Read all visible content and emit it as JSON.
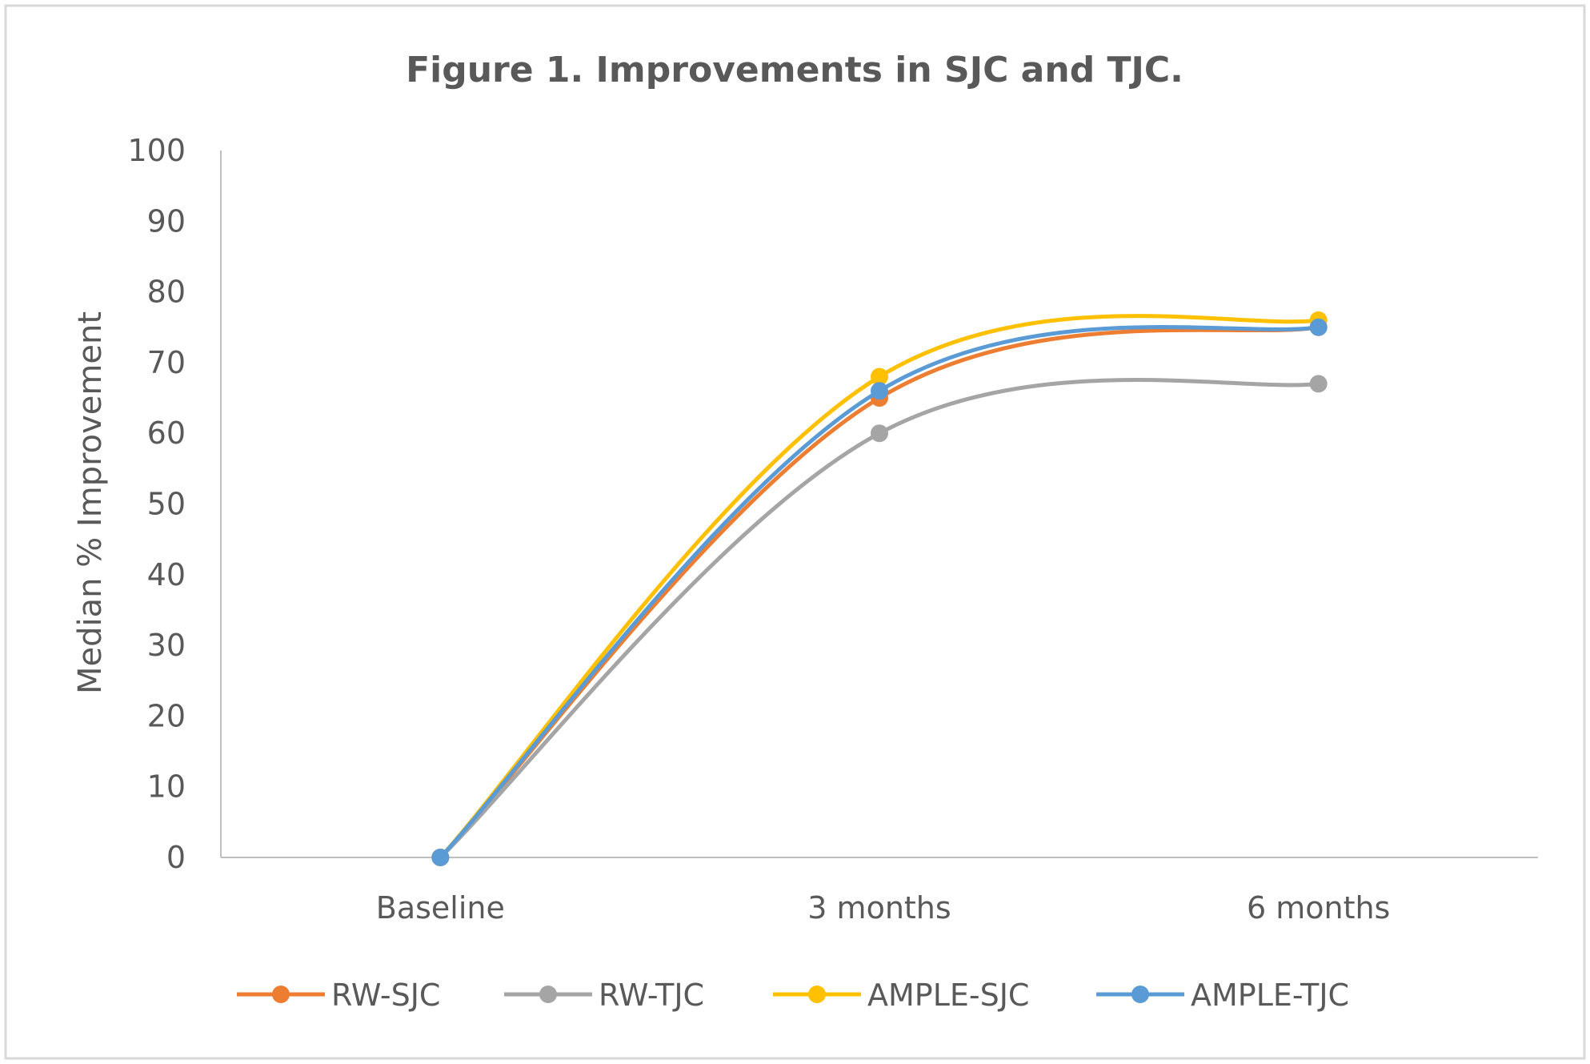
{
  "chart_data": {
    "type": "line",
    "title": "Figure 1. Improvements in SJC and TJC.",
    "xlabel": "",
    "ylabel": "Median % Improvement",
    "categories": [
      "Baseline",
      "3 months",
      "6 months"
    ],
    "ylim": [
      0,
      100
    ],
    "yticks": [
      0,
      10,
      20,
      30,
      40,
      50,
      60,
      70,
      80,
      90,
      100
    ],
    "grid": false,
    "smooth": true,
    "legend_position": "bottom",
    "series": [
      {
        "name": "RW-SJC",
        "color": "#ED7D31",
        "values": [
          0,
          65,
          75
        ]
      },
      {
        "name": "RW-TJC",
        "color": "#A5A5A5",
        "values": [
          0,
          60,
          67
        ]
      },
      {
        "name": "AMPLE-SJC",
        "color": "#FFC000",
        "values": [
          0,
          68,
          76
        ]
      },
      {
        "name": "AMPLE-TJC",
        "color": "#5B9BD5",
        "values": [
          0,
          66,
          75
        ]
      }
    ]
  }
}
